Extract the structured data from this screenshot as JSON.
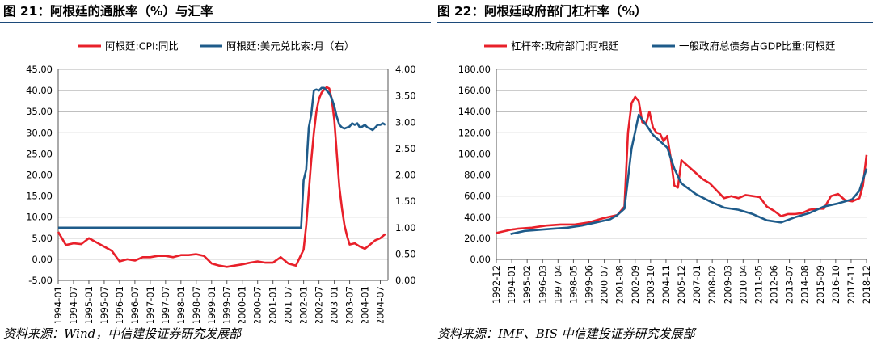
{
  "figures": [
    {
      "title": "图 21：阿根廷的通胀率（%）与汇率",
      "source": "资料来源：Wind，中信建投证券研究发展部"
    },
    {
      "title": "图 22：阿根廷政府部门杠杆率（%）",
      "source": "资料来源：IMF、BIS 中信建投证券研究发展部"
    }
  ],
  "chart_data": [
    {
      "type": "line",
      "legend_position": "top-center",
      "grid": true,
      "yleft_lim": [
        -5,
        45
      ],
      "yleft_ticks": [
        "-5.00",
        "0.00",
        "5.00",
        "10.00",
        "15.00",
        "20.00",
        "25.00",
        "30.00",
        "35.00",
        "40.00",
        "45.00"
      ],
      "yright_lim": [
        0,
        4
      ],
      "yright_ticks": [
        "0.00",
        "0.50",
        "1.00",
        "1.50",
        "2.00",
        "2.50",
        "3.00",
        "3.50",
        "4.00"
      ],
      "x_ticks": [
        "1994-01",
        "1994-07",
        "1995-01",
        "1995-07",
        "1996-01",
        "1996-07",
        "1997-01",
        "1997-07",
        "1998-01",
        "1998-07",
        "1999-01",
        "1999-07",
        "2000-01",
        "2000-07",
        "2001-01",
        "2001-07",
        "2002-01",
        "2002-07",
        "2003-01",
        "2003-07",
        "2004-01",
        "2004-07"
      ],
      "series": [
        {
          "name": "阿根廷:CPI:同比",
          "axis": "left",
          "color": "#e8202a",
          "x": [
            "1994-01",
            "1994-04",
            "1994-07",
            "1994-10",
            "1995-01",
            "1995-04",
            "1995-07",
            "1995-10",
            "1996-01",
            "1996-04",
            "1996-07",
            "1996-10",
            "1997-01",
            "1997-04",
            "1997-07",
            "1997-10",
            "1998-01",
            "1998-04",
            "1998-07",
            "1998-10",
            "1999-01",
            "1999-04",
            "1999-07",
            "1999-10",
            "2000-01",
            "2000-04",
            "2000-07",
            "2000-10",
            "2001-01",
            "2001-04",
            "2001-07",
            "2001-10",
            "2002-01",
            "2002-02",
            "2002-03",
            "2002-04",
            "2002-05",
            "2002-06",
            "2002-07",
            "2002-08",
            "2002-09",
            "2002-10",
            "2002-11",
            "2002-12",
            "2003-01",
            "2003-02",
            "2003-03",
            "2003-04",
            "2003-05",
            "2003-06",
            "2003-07",
            "2003-09",
            "2003-11",
            "2004-01",
            "2004-03",
            "2004-05",
            "2004-07",
            "2004-09"
          ],
          "values": [
            6.5,
            3.4,
            3.8,
            3.6,
            5.0,
            4.0,
            3.0,
            2.0,
            -0.5,
            0.0,
            -0.3,
            0.5,
            0.5,
            0.8,
            0.8,
            0.5,
            1.0,
            1.0,
            1.2,
            0.8,
            -1.0,
            -1.5,
            -1.8,
            -1.5,
            -1.2,
            -0.8,
            -0.5,
            -0.8,
            -0.8,
            0.5,
            -1.0,
            -1.5,
            2.3,
            8.0,
            16.0,
            23.5,
            30.0,
            35.0,
            38.0,
            39.5,
            40.2,
            40.8,
            40.5,
            38.0,
            33.0,
            25.0,
            17.0,
            12.0,
            8.0,
            5.5,
            3.5,
            3.8,
            3.0,
            2.5,
            3.5,
            4.5,
            5.0,
            6.0
          ]
        },
        {
          "name": "阿根廷:美元兑比索:月（右）",
          "axis": "right",
          "color": "#1e5b8a",
          "x": [
            "1994-01",
            "2001-12",
            "2002-01",
            "2002-02",
            "2002-03",
            "2002-04",
            "2002-05",
            "2002-06",
            "2002-07",
            "2002-08",
            "2002-09",
            "2002-10",
            "2002-11",
            "2002-12",
            "2003-01",
            "2003-02",
            "2003-03",
            "2003-04",
            "2003-05",
            "2003-06",
            "2003-07",
            "2003-08",
            "2003-09",
            "2003-10",
            "2003-11",
            "2003-12",
            "2004-01",
            "2004-02",
            "2004-03",
            "2004-04",
            "2004-05",
            "2004-06",
            "2004-07",
            "2004-08",
            "2004-09"
          ],
          "values": [
            1.0,
            1.0,
            1.9,
            2.1,
            2.9,
            3.15,
            3.6,
            3.62,
            3.6,
            3.65,
            3.65,
            3.6,
            3.55,
            3.45,
            3.3,
            3.1,
            2.95,
            2.9,
            2.88,
            2.9,
            2.92,
            2.98,
            2.95,
            2.98,
            2.9,
            2.92,
            2.95,
            2.9,
            2.88,
            2.85,
            2.9,
            2.95,
            2.95,
            2.98,
            2.95
          ]
        }
      ]
    },
    {
      "type": "line",
      "legend_position": "top-center",
      "grid": true,
      "ylim": [
        0,
        180
      ],
      "y_ticks": [
        "0.00",
        "20.00",
        "40.00",
        "60.00",
        "80.00",
        "100.00",
        "120.00",
        "140.00",
        "160.00",
        "180.00"
      ],
      "x_ticks": [
        "1992-12",
        "1994-01",
        "1995-02",
        "1996-03",
        "1997-04",
        "1998-05",
        "1999-06",
        "2000-07",
        "2001-08",
        "2002-09",
        "2003-10",
        "2004-11",
        "2005-12",
        "2007-01",
        "2008-02",
        "2009-03",
        "2010-04",
        "2011-05",
        "2012-06",
        "2013-07",
        "2014-08",
        "2015-09",
        "2016-10",
        "2017-11",
        "2018-12"
      ],
      "series": [
        {
          "name": "杠杆率:政府部门:阿根廷",
          "color": "#e8202a",
          "x": [
            "1992-12",
            "1993-12",
            "1994-06",
            "1995-06",
            "1996-06",
            "1997-06",
            "1998-06",
            "1999-06",
            "2000-06",
            "2001-06",
            "2001-12",
            "2002-03",
            "2002-06",
            "2002-09",
            "2002-12",
            "2003-03",
            "2003-06",
            "2003-09",
            "2003-12",
            "2004-03",
            "2004-06",
            "2004-09",
            "2004-12",
            "2005-03",
            "2005-06",
            "2005-09",
            "2005-12",
            "2006-06",
            "2006-12",
            "2007-06",
            "2007-12",
            "2008-06",
            "2008-12",
            "2009-06",
            "2009-12",
            "2010-06",
            "2010-12",
            "2011-06",
            "2011-12",
            "2012-06",
            "2012-12",
            "2013-06",
            "2013-12",
            "2014-06",
            "2014-12",
            "2015-06",
            "2015-12",
            "2016-06",
            "2016-12",
            "2017-06",
            "2017-12",
            "2018-06",
            "2018-09",
            "2018-12"
          ],
          "values": [
            25,
            28,
            29,
            30,
            32,
            33,
            33,
            35,
            39,
            42,
            50,
            120,
            148,
            154,
            150,
            130,
            128,
            140,
            125,
            120,
            119,
            112,
            117,
            96,
            70,
            68,
            94,
            88,
            82,
            76,
            72,
            65,
            58,
            60,
            58,
            61,
            60,
            59,
            50,
            46,
            41,
            43,
            43,
            44,
            47,
            48,
            48,
            60,
            62,
            56,
            55,
            58,
            70,
            99
          ]
        },
        {
          "name": "一般政府总债务占GDP比重:阿根廷",
          "color": "#1e5b8a",
          "x": [
            "1993-12",
            "1994-12",
            "1995-12",
            "1996-12",
            "1997-12",
            "1998-12",
            "1999-12",
            "2000-12",
            "2001-06",
            "2001-12",
            "2002-06",
            "2002-12",
            "2003-06",
            "2003-12",
            "2004-06",
            "2004-12",
            "2005-06",
            "2005-12",
            "2006-12",
            "2007-12",
            "2008-12",
            "2009-12",
            "2010-12",
            "2011-12",
            "2012-12",
            "2013-12",
            "2014-12",
            "2015-12",
            "2016-12",
            "2017-12",
            "2018-06",
            "2018-12"
          ],
          "values": [
            24,
            27,
            28,
            29,
            30,
            32,
            35,
            38,
            42,
            48,
            105,
            137,
            128,
            118,
            112,
            106,
            86,
            72,
            62,
            55,
            49,
            47,
            43,
            37,
            35,
            40,
            44,
            50,
            53,
            57,
            65,
            86
          ]
        }
      ]
    }
  ]
}
